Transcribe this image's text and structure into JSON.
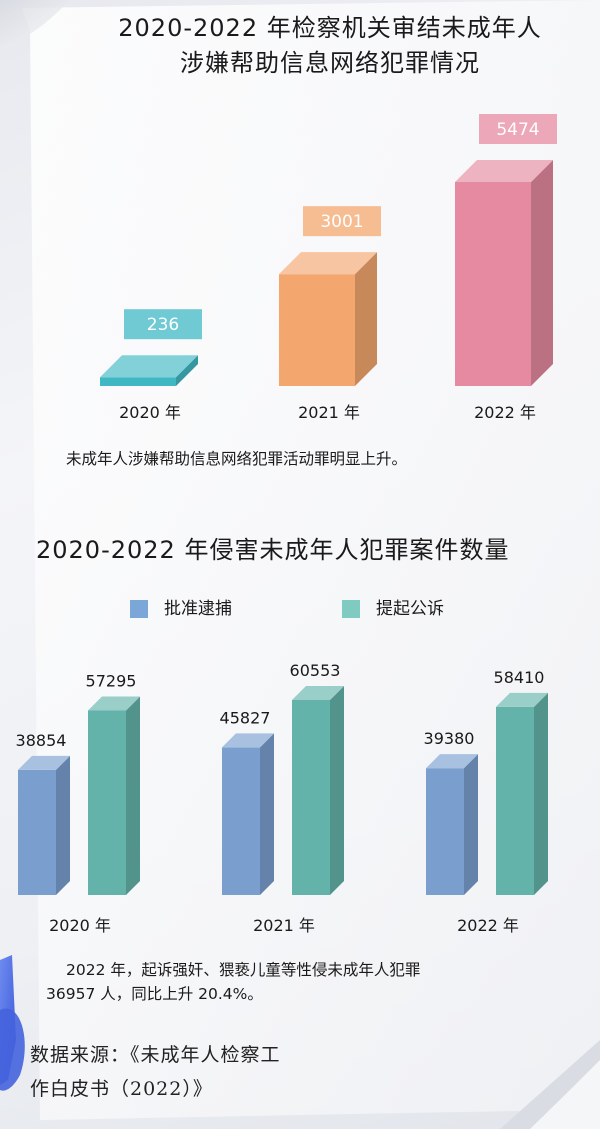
{
  "chart_data": [
    {
      "type": "bar",
      "title_line1": "2020-2022 年检察机关审结未成年人",
      "title_line2": "涉嫌帮助信息网络犯罪情况",
      "categories": [
        "2020 年",
        "2021 年",
        "2022 年"
      ],
      "values": [
        236,
        3001,
        5474
      ],
      "value_labels": [
        "236",
        "3001",
        "5474"
      ],
      "colors": [
        "#3fb8c4",
        "#f3a66e",
        "#e58aa0"
      ],
      "note": "未成年人涉嫌帮助信息网络犯罪活动罪明显上升。"
    },
    {
      "type": "bar",
      "title": "2020-2022 年侵害未成年人犯罪案件数量",
      "categories": [
        "2020 年",
        "2021 年",
        "2022 年"
      ],
      "legend": [
        "批准逮捕",
        "提起公诉"
      ],
      "legend_placement": "top",
      "series": [
        {
          "name": "批准逮捕",
          "values": [
            38854,
            45827,
            39380
          ],
          "color": "#7a9fcf"
        },
        {
          "name": "提起公诉",
          "values": [
            57295,
            60553,
            58410
          ],
          "color": "#64b3ab"
        }
      ],
      "value_labels": [
        [
          "38854",
          "45827",
          "39380"
        ],
        [
          "57295",
          "60553",
          "58410"
        ]
      ],
      "note_line1": "2022 年，起诉强奸、猥亵儿童等性侵未成年人犯罪",
      "note_line2": "36957 人，同比上升 20.4%。"
    }
  ],
  "source_line1": "数据来源：《未成年人检察工",
  "source_line2": "作白皮书（2022）》"
}
